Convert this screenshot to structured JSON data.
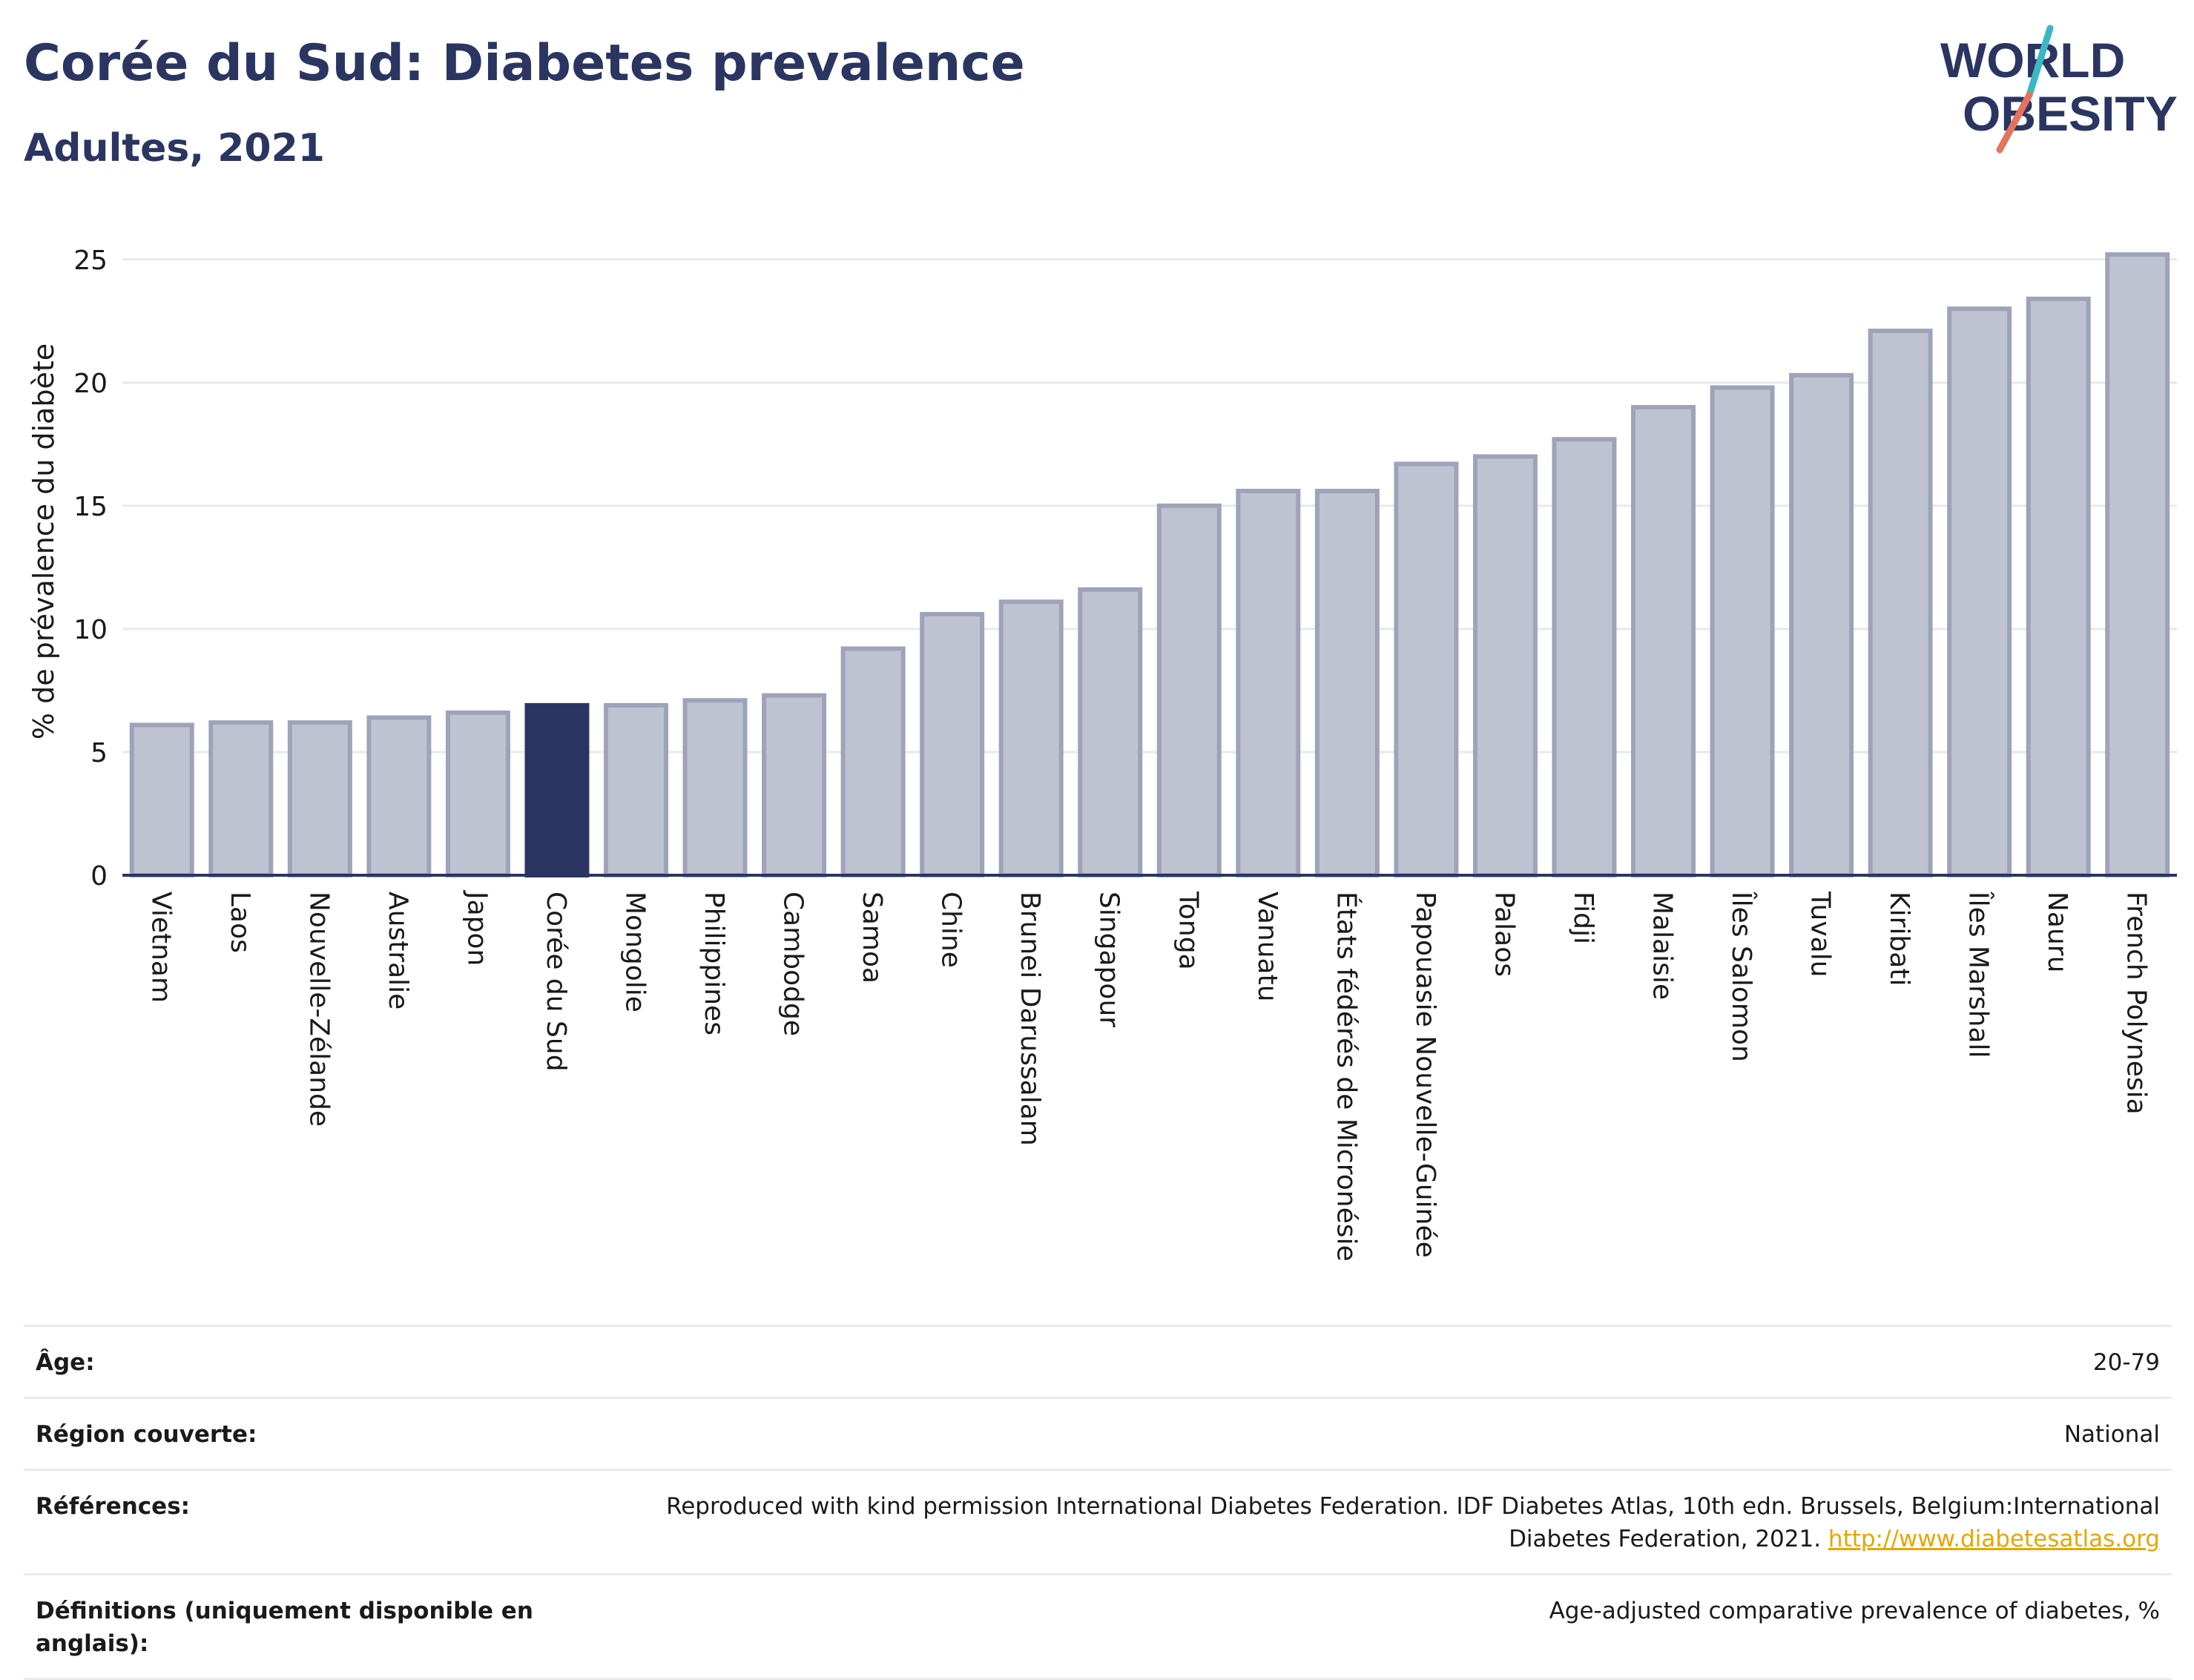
{
  "header": {
    "title": "Corée du Sud: Diabetes prevalence",
    "subtitle": "Adultes, 2021"
  },
  "logo": {
    "line1": "WORLD",
    "line2": "OBESITY",
    "colors": {
      "text": "#2b3561",
      "slash_teal": "#3bb8c4",
      "slash_coral": "#e5735d"
    }
  },
  "chart_data": {
    "type": "bar",
    "title": "",
    "xlabel": "",
    "ylabel": "% de prévalence du diabète",
    "ylim": [
      0,
      26.5
    ],
    "yticks": [
      0,
      5,
      10,
      15,
      20,
      25
    ],
    "grid": true,
    "highlight": "Corée du Sud",
    "colors": {
      "bar_fill": "#bfc3d1",
      "bar_stroke": "#9ea3b9",
      "highlight": "#2b3561",
      "grid": "#e6e9ee",
      "axis": "#2b3561"
    },
    "categories": [
      "Vietnam",
      "Laos",
      "Nouvelle-Zélande",
      "Australie",
      "Japon",
      "Corée du Sud",
      "Mongolie",
      "Philippines",
      "Cambodge",
      "Samoa",
      "Chine",
      "Brunei Darussalam",
      "Singapour",
      "Tonga",
      "Vanuatu",
      "États fédérés de Micronésie",
      "Papouasie Nouvelle-Guinée",
      "Palaos",
      "Fidji",
      "Malaisie",
      "Îles Salomon",
      "Tuvalu",
      "Kiribati",
      "Îles Marshall",
      "Nauru",
      "French Polynesia"
    ],
    "values": [
      6.1,
      6.2,
      6.2,
      6.4,
      6.6,
      6.9,
      6.9,
      7.1,
      7.3,
      9.2,
      10.6,
      11.1,
      11.6,
      15.0,
      15.6,
      15.6,
      16.7,
      17.0,
      17.7,
      19.0,
      19.8,
      20.3,
      22.1,
      23.0,
      23.4,
      25.2
    ]
  },
  "meta": {
    "rows": [
      {
        "label": "Âge:",
        "value": "20-79"
      },
      {
        "label": "Région couverte:",
        "value": "National"
      },
      {
        "label": "Références:",
        "value": "Reproduced with kind permission International Diabetes Federation.  IDF Diabetes Atlas, 10th edn. Brussels, Belgium:International Diabetes Federation, 2021.",
        "link": "http://www.diabetesatlas.org"
      },
      {
        "label": "Définitions (uniquement disponible en anglais):",
        "value": "Age-adjusted comparative prevalence of diabetes, %"
      }
    ]
  }
}
